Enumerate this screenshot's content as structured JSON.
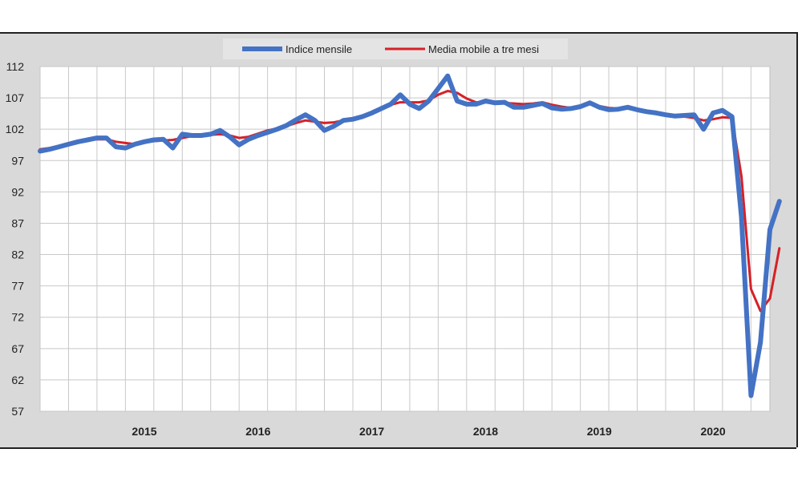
{
  "chart_data": {
    "type": "line",
    "xlim": [
      "2014-07",
      "2020-12"
    ],
    "ylim": [
      57,
      112
    ],
    "yticks": [
      112,
      107,
      102,
      97,
      92,
      87,
      82,
      77,
      72,
      67,
      62,
      57
    ],
    "xticks": [
      {
        "label": "2015",
        "date": "2015-06"
      },
      {
        "label": "2016",
        "date": "2016-06"
      },
      {
        "label": "2017",
        "date": "2017-06"
      },
      {
        "label": "2018",
        "date": "2018-06"
      },
      {
        "label": "2019",
        "date": "2019-06"
      },
      {
        "label": "2020",
        "date": "2020-06"
      }
    ],
    "legend_position": "top-center",
    "grid": true,
    "series": [
      {
        "name": "Indice mensile",
        "color": "#4472c4",
        "points": [
          [
            "2014-07",
            98.5
          ],
          [
            "2014-08",
            98.8
          ],
          [
            "2014-09",
            99.2
          ],
          [
            "2014-10",
            99.6
          ],
          [
            "2014-11",
            100.0
          ],
          [
            "2014-12",
            100.3
          ],
          [
            "2015-01",
            100.6
          ],
          [
            "2015-02",
            100.6
          ],
          [
            "2015-03",
            99.2
          ],
          [
            "2015-04",
            99.0
          ],
          [
            "2015-05",
            99.6
          ],
          [
            "2015-06",
            100.0
          ],
          [
            "2015-07",
            100.3
          ],
          [
            "2015-08",
            100.4
          ],
          [
            "2015-09",
            99.0
          ],
          [
            "2015-10",
            101.2
          ],
          [
            "2015-11",
            101.0
          ],
          [
            "2015-12",
            101.0
          ],
          [
            "2016-01",
            101.2
          ],
          [
            "2016-02",
            101.8
          ],
          [
            "2016-03",
            100.8
          ],
          [
            "2016-04",
            99.5
          ],
          [
            "2016-05",
            100.4
          ],
          [
            "2016-06",
            101.0
          ],
          [
            "2016-07",
            101.5
          ],
          [
            "2016-08",
            102.0
          ],
          [
            "2016-09",
            102.6
          ],
          [
            "2016-10",
            103.5
          ],
          [
            "2016-11",
            104.3
          ],
          [
            "2016-12",
            103.4
          ],
          [
            "2017-01",
            101.8
          ],
          [
            "2017-02",
            102.5
          ],
          [
            "2017-03",
            103.4
          ],
          [
            "2017-04",
            103.6
          ],
          [
            "2017-05",
            104.0
          ],
          [
            "2017-06",
            104.6
          ],
          [
            "2017-07",
            105.3
          ],
          [
            "2017-08",
            106.0
          ],
          [
            "2017-09",
            107.5
          ],
          [
            "2017-10",
            106.0
          ],
          [
            "2017-11",
            105.3
          ],
          [
            "2017-12",
            106.5
          ],
          [
            "2018-01",
            108.5
          ],
          [
            "2018-02",
            110.5
          ],
          [
            "2018-03",
            106.5
          ],
          [
            "2018-04",
            106.0
          ],
          [
            "2018-05",
            106.0
          ],
          [
            "2018-06",
            106.5
          ],
          [
            "2018-07",
            106.2
          ],
          [
            "2018-08",
            106.3
          ],
          [
            "2018-09",
            105.5
          ],
          [
            "2018-10",
            105.5
          ],
          [
            "2018-11",
            105.8
          ],
          [
            "2018-12",
            106.1
          ],
          [
            "2019-01",
            105.4
          ],
          [
            "2019-02",
            105.2
          ],
          [
            "2019-03",
            105.3
          ],
          [
            "2019-04",
            105.6
          ],
          [
            "2019-05",
            106.2
          ],
          [
            "2019-06",
            105.5
          ],
          [
            "2019-07",
            105.1
          ],
          [
            "2019-08",
            105.2
          ],
          [
            "2019-09",
            105.5
          ],
          [
            "2019-10",
            105.1
          ],
          [
            "2019-11",
            104.8
          ],
          [
            "2019-12",
            104.6
          ],
          [
            "2020-01",
            104.3
          ],
          [
            "2020-02",
            104.1
          ],
          [
            "2020-03",
            104.2
          ],
          [
            "2020-04",
            104.3
          ],
          [
            "2020-05",
            102.0
          ],
          [
            "2020-06",
            104.6
          ],
          [
            "2020-07",
            105.0
          ],
          [
            "2020-08",
            104.0
          ],
          [
            "2020-09",
            88.0
          ],
          [
            "2020-10",
            59.5
          ],
          [
            "2020-11",
            68.0
          ],
          [
            "2020-12",
            86.0
          ],
          [
            "2021-01",
            90.5
          ]
        ]
      },
      {
        "name": "Media mobile a tre mesi",
        "color": "#d62027",
        "points": [
          [
            "2014-07",
            98.8
          ],
          [
            "2014-08",
            99.0
          ],
          [
            "2014-09",
            99.3
          ],
          [
            "2014-10",
            99.6
          ],
          [
            "2014-11",
            99.9
          ],
          [
            "2014-12",
            100.2
          ],
          [
            "2015-01",
            100.4
          ],
          [
            "2015-02",
            100.4
          ],
          [
            "2015-03",
            100.0
          ],
          [
            "2015-04",
            99.8
          ],
          [
            "2015-05",
            99.6
          ],
          [
            "2015-06",
            99.9
          ],
          [
            "2015-07",
            100.1
          ],
          [
            "2015-08",
            100.2
          ],
          [
            "2015-09",
            100.3
          ],
          [
            "2015-10",
            100.6
          ],
          [
            "2015-11",
            100.9
          ],
          [
            "2015-12",
            101.0
          ],
          [
            "2016-01",
            101.1
          ],
          [
            "2016-02",
            101.2
          ],
          [
            "2016-03",
            101.0
          ],
          [
            "2016-04",
            100.6
          ],
          [
            "2016-05",
            100.8
          ],
          [
            "2016-06",
            101.3
          ],
          [
            "2016-07",
            101.8
          ],
          [
            "2016-08",
            102.1
          ],
          [
            "2016-09",
            102.5
          ],
          [
            "2016-10",
            103.0
          ],
          [
            "2016-11",
            103.4
          ],
          [
            "2016-12",
            103.2
          ],
          [
            "2017-01",
            103.0
          ],
          [
            "2017-02",
            103.1
          ],
          [
            "2017-03",
            103.4
          ],
          [
            "2017-04",
            103.7
          ],
          [
            "2017-05",
            104.0
          ],
          [
            "2017-06",
            104.5
          ],
          [
            "2017-07",
            105.2
          ],
          [
            "2017-08",
            105.9
          ],
          [
            "2017-09",
            106.3
          ],
          [
            "2017-10",
            106.3
          ],
          [
            "2017-11",
            106.3
          ],
          [
            "2017-12",
            106.6
          ],
          [
            "2018-01",
            107.5
          ],
          [
            "2018-02",
            108.1
          ],
          [
            "2018-03",
            107.8
          ],
          [
            "2018-04",
            106.9
          ],
          [
            "2018-05",
            106.3
          ],
          [
            "2018-06",
            106.3
          ],
          [
            "2018-07",
            106.3
          ],
          [
            "2018-08",
            106.2
          ],
          [
            "2018-09",
            106.1
          ],
          [
            "2018-10",
            106.0
          ],
          [
            "2018-11",
            106.1
          ],
          [
            "2018-12",
            106.3
          ],
          [
            "2019-01",
            105.9
          ],
          [
            "2019-02",
            105.6
          ],
          [
            "2019-03",
            105.4
          ],
          [
            "2019-04",
            105.7
          ],
          [
            "2019-05",
            106.0
          ],
          [
            "2019-06",
            105.7
          ],
          [
            "2019-07",
            105.4
          ],
          [
            "2019-08",
            105.3
          ],
          [
            "2019-09",
            105.3
          ],
          [
            "2019-10",
            105.0
          ],
          [
            "2019-11",
            104.7
          ],
          [
            "2019-12",
            104.5
          ],
          [
            "2020-01",
            104.3
          ],
          [
            "2020-02",
            104.1
          ],
          [
            "2020-03",
            104.0
          ],
          [
            "2020-04",
            103.8
          ],
          [
            "2020-05",
            103.4
          ],
          [
            "2020-06",
            103.6
          ],
          [
            "2020-07",
            103.9
          ],
          [
            "2020-08",
            103.8
          ],
          [
            "2020-09",
            94.5
          ],
          [
            "2020-10",
            76.5
          ],
          [
            "2020-11",
            73.0
          ],
          [
            "2020-12",
            75.0
          ],
          [
            "2021-01",
            83.0
          ]
        ]
      }
    ]
  }
}
